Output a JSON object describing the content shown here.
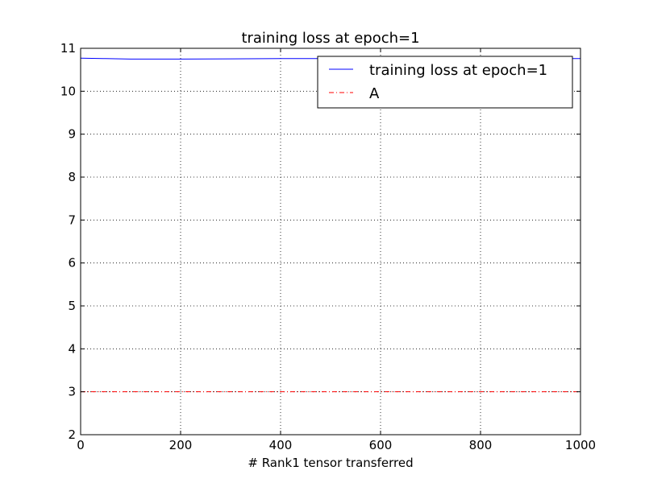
{
  "chart_data": {
    "type": "line",
    "title": "training loss at epoch=1",
    "xlabel": "# Rank1 tensor transferred",
    "ylabel": "",
    "xlim": [
      0,
      1000
    ],
    "ylim": [
      2,
      11
    ],
    "xticks": [
      0,
      200,
      400,
      600,
      800,
      1000
    ],
    "yticks": [
      2,
      3,
      4,
      5,
      6,
      7,
      8,
      9,
      10,
      11
    ],
    "grid": true,
    "legend_position": "upper-right",
    "series": [
      {
        "name": "training loss at epoch=1",
        "color": "#0000ff",
        "style": "solid",
        "x": [
          0,
          50,
          100,
          150,
          200,
          300,
          400,
          500,
          600,
          700,
          800,
          900,
          1000
        ],
        "y": [
          10.77,
          10.76,
          10.75,
          10.75,
          10.75,
          10.755,
          10.76,
          10.76,
          10.76,
          10.76,
          10.76,
          10.76,
          10.76
        ]
      },
      {
        "name": "A",
        "color": "#ff0000",
        "style": "dashdot",
        "x": [
          0,
          1000
        ],
        "y": [
          3,
          3
        ]
      }
    ]
  }
}
